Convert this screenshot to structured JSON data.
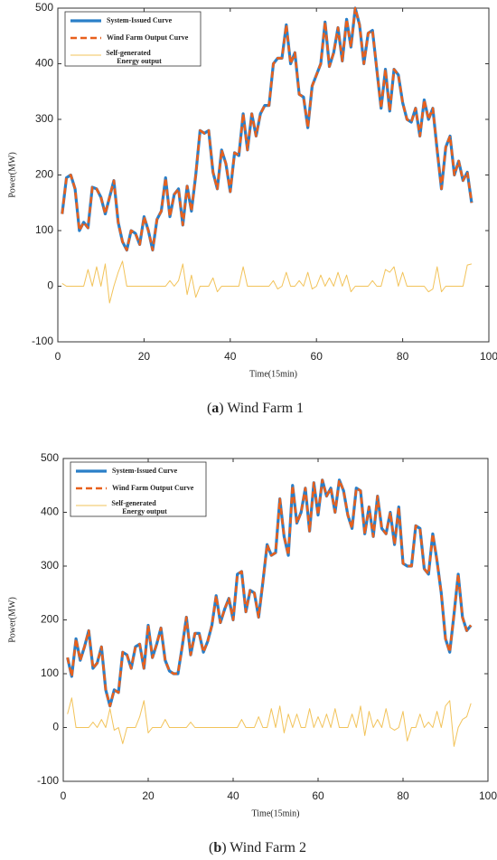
{
  "chart_data": [
    {
      "type": "line",
      "xlabel": "Time(15min)",
      "ylabel": "Power(MW)",
      "caption": [
        "(",
        "a",
        ") Wind Farm 1"
      ],
      "xlim": [
        0,
        100
      ],
      "xticks": [
        0,
        20,
        40,
        60,
        80,
        100
      ],
      "ylim": [
        -100,
        500
      ],
      "yticks": [
        -100,
        0,
        100,
        200,
        300,
        400,
        500
      ],
      "legend": "upper left",
      "x": [
        1,
        2,
        3,
        4,
        5,
        6,
        7,
        8,
        9,
        10,
        11,
        12,
        13,
        14,
        15,
        16,
        17,
        18,
        19,
        20,
        21,
        22,
        23,
        24,
        25,
        26,
        27,
        28,
        29,
        30,
        31,
        32,
        33,
        34,
        35,
        36,
        37,
        38,
        39,
        40,
        41,
        42,
        43,
        44,
        45,
        46,
        47,
        48,
        49,
        50,
        51,
        52,
        53,
        54,
        55,
        56,
        57,
        58,
        59,
        60,
        61,
        62,
        63,
        64,
        65,
        66,
        67,
        68,
        69,
        70,
        71,
        72,
        73,
        74,
        75,
        76,
        77,
        78,
        79,
        80,
        81,
        82,
        83,
        84,
        85,
        86,
        87,
        88,
        89,
        90,
        91,
        92,
        93,
        94,
        95,
        96
      ],
      "series": [
        {
          "name": "System-Issued Curve",
          "color": "#2a7fc8",
          "linestyle": "solid",
          "linewidth": 3.2,
          "values": [
            130,
            195,
            200,
            175,
            100,
            115,
            105,
            178,
            175,
            160,
            130,
            160,
            190,
            115,
            80,
            65,
            100,
            95,
            75,
            125,
            100,
            65,
            120,
            135,
            195,
            125,
            165,
            175,
            110,
            180,
            135,
            200,
            280,
            275,
            280,
            205,
            175,
            245,
            220,
            170,
            240,
            235,
            310,
            245,
            310,
            270,
            310,
            325,
            325,
            400,
            410,
            410,
            470,
            400,
            420,
            345,
            340,
            285,
            360,
            380,
            400,
            475,
            395,
            420,
            465,
            405,
            480,
            430,
            500,
            470,
            400,
            455,
            460,
            390,
            320,
            390,
            315,
            390,
            380,
            330,
            300,
            295,
            320,
            270,
            335,
            300,
            320,
            245,
            175,
            250,
            270,
            200,
            225,
            190,
            205,
            150
          ]
        },
        {
          "name": "Wind Farm Output Curve",
          "color": "#e8601c",
          "linestyle": "dashed",
          "linewidth": 2.6,
          "values": [
            130,
            195,
            200,
            175,
            100,
            115,
            105,
            178,
            175,
            160,
            130,
            160,
            190,
            115,
            80,
            65,
            100,
            95,
            75,
            125,
            100,
            65,
            120,
            135,
            195,
            125,
            165,
            175,
            110,
            180,
            135,
            200,
            280,
            275,
            280,
            205,
            175,
            245,
            220,
            170,
            240,
            235,
            310,
            245,
            310,
            270,
            310,
            325,
            325,
            400,
            410,
            410,
            470,
            400,
            420,
            345,
            340,
            285,
            360,
            380,
            400,
            475,
            395,
            420,
            465,
            405,
            480,
            430,
            500,
            470,
            400,
            455,
            460,
            390,
            320,
            390,
            315,
            390,
            380,
            330,
            300,
            295,
            320,
            270,
            335,
            300,
            320,
            245,
            175,
            250,
            270,
            200,
            225,
            190,
            205,
            150
          ]
        },
        {
          "name": "Self-generated Energy output",
          "color": "#f2c35a",
          "linestyle": "solid",
          "linewidth": 1,
          "values": [
            5,
            0,
            0,
            0,
            0,
            0,
            30,
            0,
            35,
            0,
            40,
            -30,
            0,
            25,
            45,
            0,
            0,
            0,
            0,
            0,
            0,
            0,
            0,
            0,
            0,
            10,
            0,
            10,
            40,
            -15,
            20,
            -20,
            0,
            0,
            0,
            15,
            -10,
            0,
            0,
            0,
            0,
            0,
            35,
            0,
            0,
            0,
            0,
            0,
            0,
            10,
            -5,
            0,
            25,
            0,
            0,
            10,
            0,
            25,
            -5,
            0,
            20,
            0,
            15,
            0,
            25,
            0,
            20,
            -10,
            0,
            0,
            0,
            0,
            10,
            0,
            0,
            30,
            25,
            35,
            0,
            25,
            0,
            0,
            0,
            0,
            0,
            -10,
            -5,
            35,
            -10,
            0,
            0,
            0,
            0,
            0,
            38,
            40
          ]
        }
      ]
    },
    {
      "type": "line",
      "xlabel": "Time(15min)",
      "ylabel": "Power(MW)",
      "caption": [
        "(",
        "b",
        ") Wind Farm 2"
      ],
      "xlim": [
        0,
        100
      ],
      "xticks": [
        0,
        20,
        40,
        60,
        80,
        100
      ],
      "ylim": [
        -100,
        500
      ],
      "yticks": [
        -100,
        0,
        100,
        200,
        300,
        400,
        500
      ],
      "legend": "upper left",
      "x": [
        1,
        2,
        3,
        4,
        5,
        6,
        7,
        8,
        9,
        10,
        11,
        12,
        13,
        14,
        15,
        16,
        17,
        18,
        19,
        20,
        21,
        22,
        23,
        24,
        25,
        26,
        27,
        28,
        29,
        30,
        31,
        32,
        33,
        34,
        35,
        36,
        37,
        38,
        39,
        40,
        41,
        42,
        43,
        44,
        45,
        46,
        47,
        48,
        49,
        50,
        51,
        52,
        53,
        54,
        55,
        56,
        57,
        58,
        59,
        60,
        61,
        62,
        63,
        64,
        65,
        66,
        67,
        68,
        69,
        70,
        71,
        72,
        73,
        74,
        75,
        76,
        77,
        78,
        79,
        80,
        81,
        82,
        83,
        84,
        85,
        86,
        87,
        88,
        89,
        90,
        91,
        92,
        93,
        94,
        95,
        96
      ],
      "series": [
        {
          "name": "System-Issued Curve",
          "color": "#2a7fc8",
          "linestyle": "solid",
          "linewidth": 3.2,
          "values": [
            130,
            95,
            165,
            125,
            150,
            180,
            110,
            120,
            150,
            70,
            40,
            70,
            65,
            140,
            135,
            110,
            150,
            155,
            110,
            190,
            130,
            155,
            185,
            125,
            105,
            100,
            100,
            150,
            205,
            135,
            175,
            175,
            140,
            160,
            190,
            245,
            195,
            220,
            240,
            200,
            285,
            290,
            215,
            255,
            250,
            205,
            270,
            340,
            320,
            325,
            425,
            355,
            320,
            450,
            380,
            400,
            445,
            365,
            455,
            395,
            460,
            430,
            445,
            400,
            460,
            440,
            395,
            370,
            445,
            440,
            360,
            410,
            355,
            430,
            370,
            360,
            400,
            340,
            410,
            305,
            300,
            300,
            375,
            370,
            295,
            285,
            360,
            310,
            250,
            165,
            140,
            210,
            285,
            205,
            180,
            190
          ]
        },
        {
          "name": "Wind Farm Output Curve",
          "color": "#e8601c",
          "linestyle": "dashed",
          "linewidth": 2.6,
          "values": [
            130,
            95,
            165,
            125,
            150,
            180,
            110,
            120,
            150,
            70,
            40,
            70,
            65,
            140,
            135,
            110,
            150,
            155,
            110,
            190,
            130,
            155,
            185,
            125,
            105,
            100,
            100,
            150,
            205,
            135,
            175,
            175,
            140,
            160,
            190,
            245,
            195,
            220,
            240,
            200,
            285,
            290,
            215,
            255,
            250,
            205,
            270,
            340,
            320,
            325,
            425,
            355,
            320,
            450,
            380,
            400,
            445,
            365,
            455,
            395,
            460,
            430,
            445,
            400,
            460,
            440,
            395,
            370,
            445,
            440,
            360,
            410,
            355,
            430,
            370,
            360,
            400,
            340,
            410,
            305,
            300,
            300,
            375,
            370,
            295,
            285,
            360,
            310,
            250,
            165,
            140,
            210,
            285,
            205,
            180,
            190
          ]
        },
        {
          "name": "Self-generated Energy output",
          "color": "#f2c35a",
          "linestyle": "solid",
          "linewidth": 1,
          "values": [
            25,
            55,
            0,
            0,
            0,
            0,
            10,
            0,
            15,
            0,
            35,
            -5,
            0,
            -30,
            0,
            0,
            0,
            20,
            50,
            -10,
            0,
            0,
            0,
            15,
            0,
            0,
            0,
            0,
            0,
            10,
            0,
            0,
            0,
            0,
            0,
            0,
            0,
            0,
            0,
            0,
            0,
            15,
            0,
            0,
            0,
            20,
            0,
            0,
            35,
            0,
            40,
            -10,
            25,
            0,
            25,
            0,
            0,
            35,
            0,
            20,
            0,
            25,
            0,
            35,
            0,
            0,
            0,
            25,
            0,
            40,
            -15,
            30,
            0,
            15,
            0,
            35,
            0,
            -5,
            0,
            30,
            -25,
            0,
            0,
            25,
            0,
            10,
            0,
            30,
            0,
            40,
            50,
            -35,
            0,
            15,
            20,
            45
          ]
        }
      ]
    }
  ]
}
